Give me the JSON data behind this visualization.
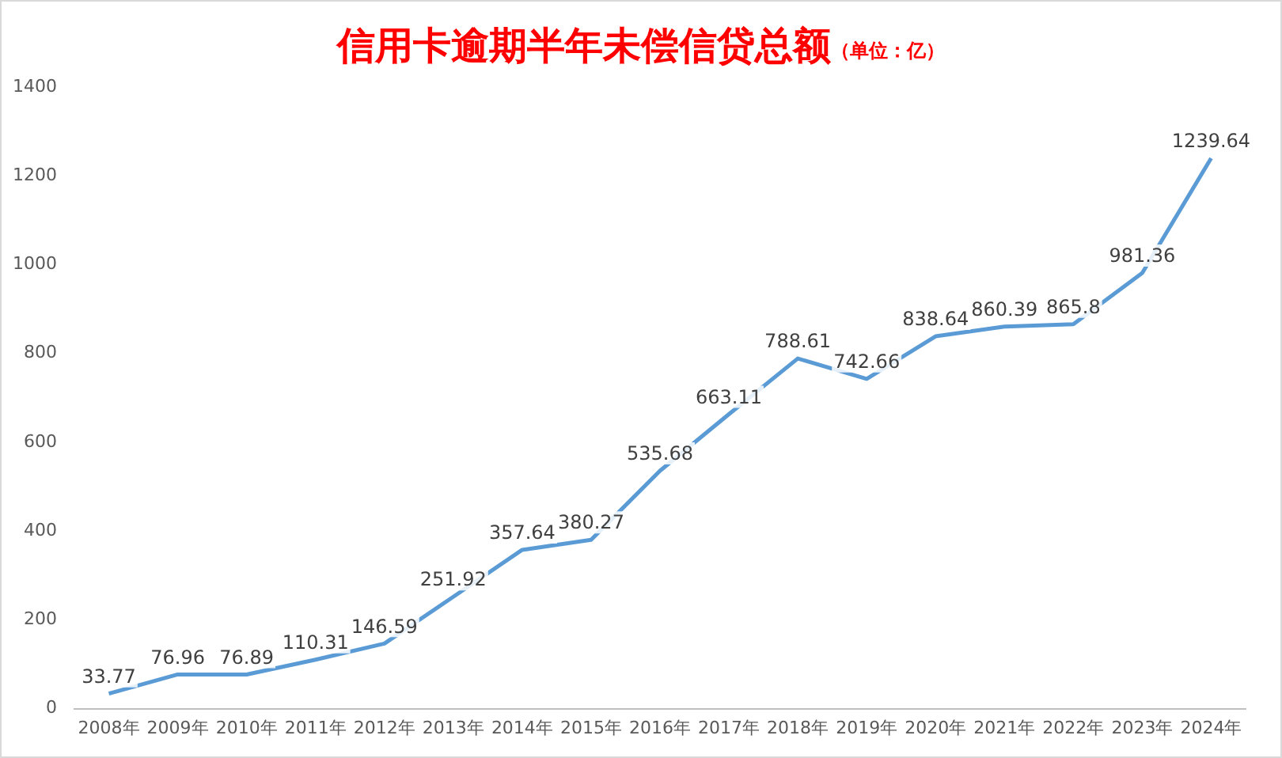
{
  "chart_data": {
    "type": "line",
    "title": "信用卡逾期半年未偿信贷总额",
    "subtitle": "（单位：亿）",
    "categories": [
      "2008年",
      "2009年",
      "2010年",
      "2011年",
      "2012年",
      "2013年",
      "2014年",
      "2015年",
      "2016年",
      "2017年",
      "2018年",
      "2019年",
      "2020年",
      "2021年",
      "2022年",
      "2023年",
      "2024年"
    ],
    "series": [
      {
        "color": "#5b9bd5",
        "values": [
          33.77,
          76.96,
          76.89,
          110.31,
          146.59,
          251.92,
          357.64,
          380.27,
          535.68,
          663.11,
          788.61,
          742.66,
          838.64,
          860.39,
          865.8,
          981.36,
          1239.64
        ]
      }
    ],
    "ylim": [
      0,
      1400
    ],
    "yticks": [
      0,
      200,
      400,
      600,
      800,
      1000,
      1200,
      1400
    ],
    "grid": false,
    "legend": false,
    "marker": "none",
    "line_style": "solid",
    "data_labels": true
  }
}
